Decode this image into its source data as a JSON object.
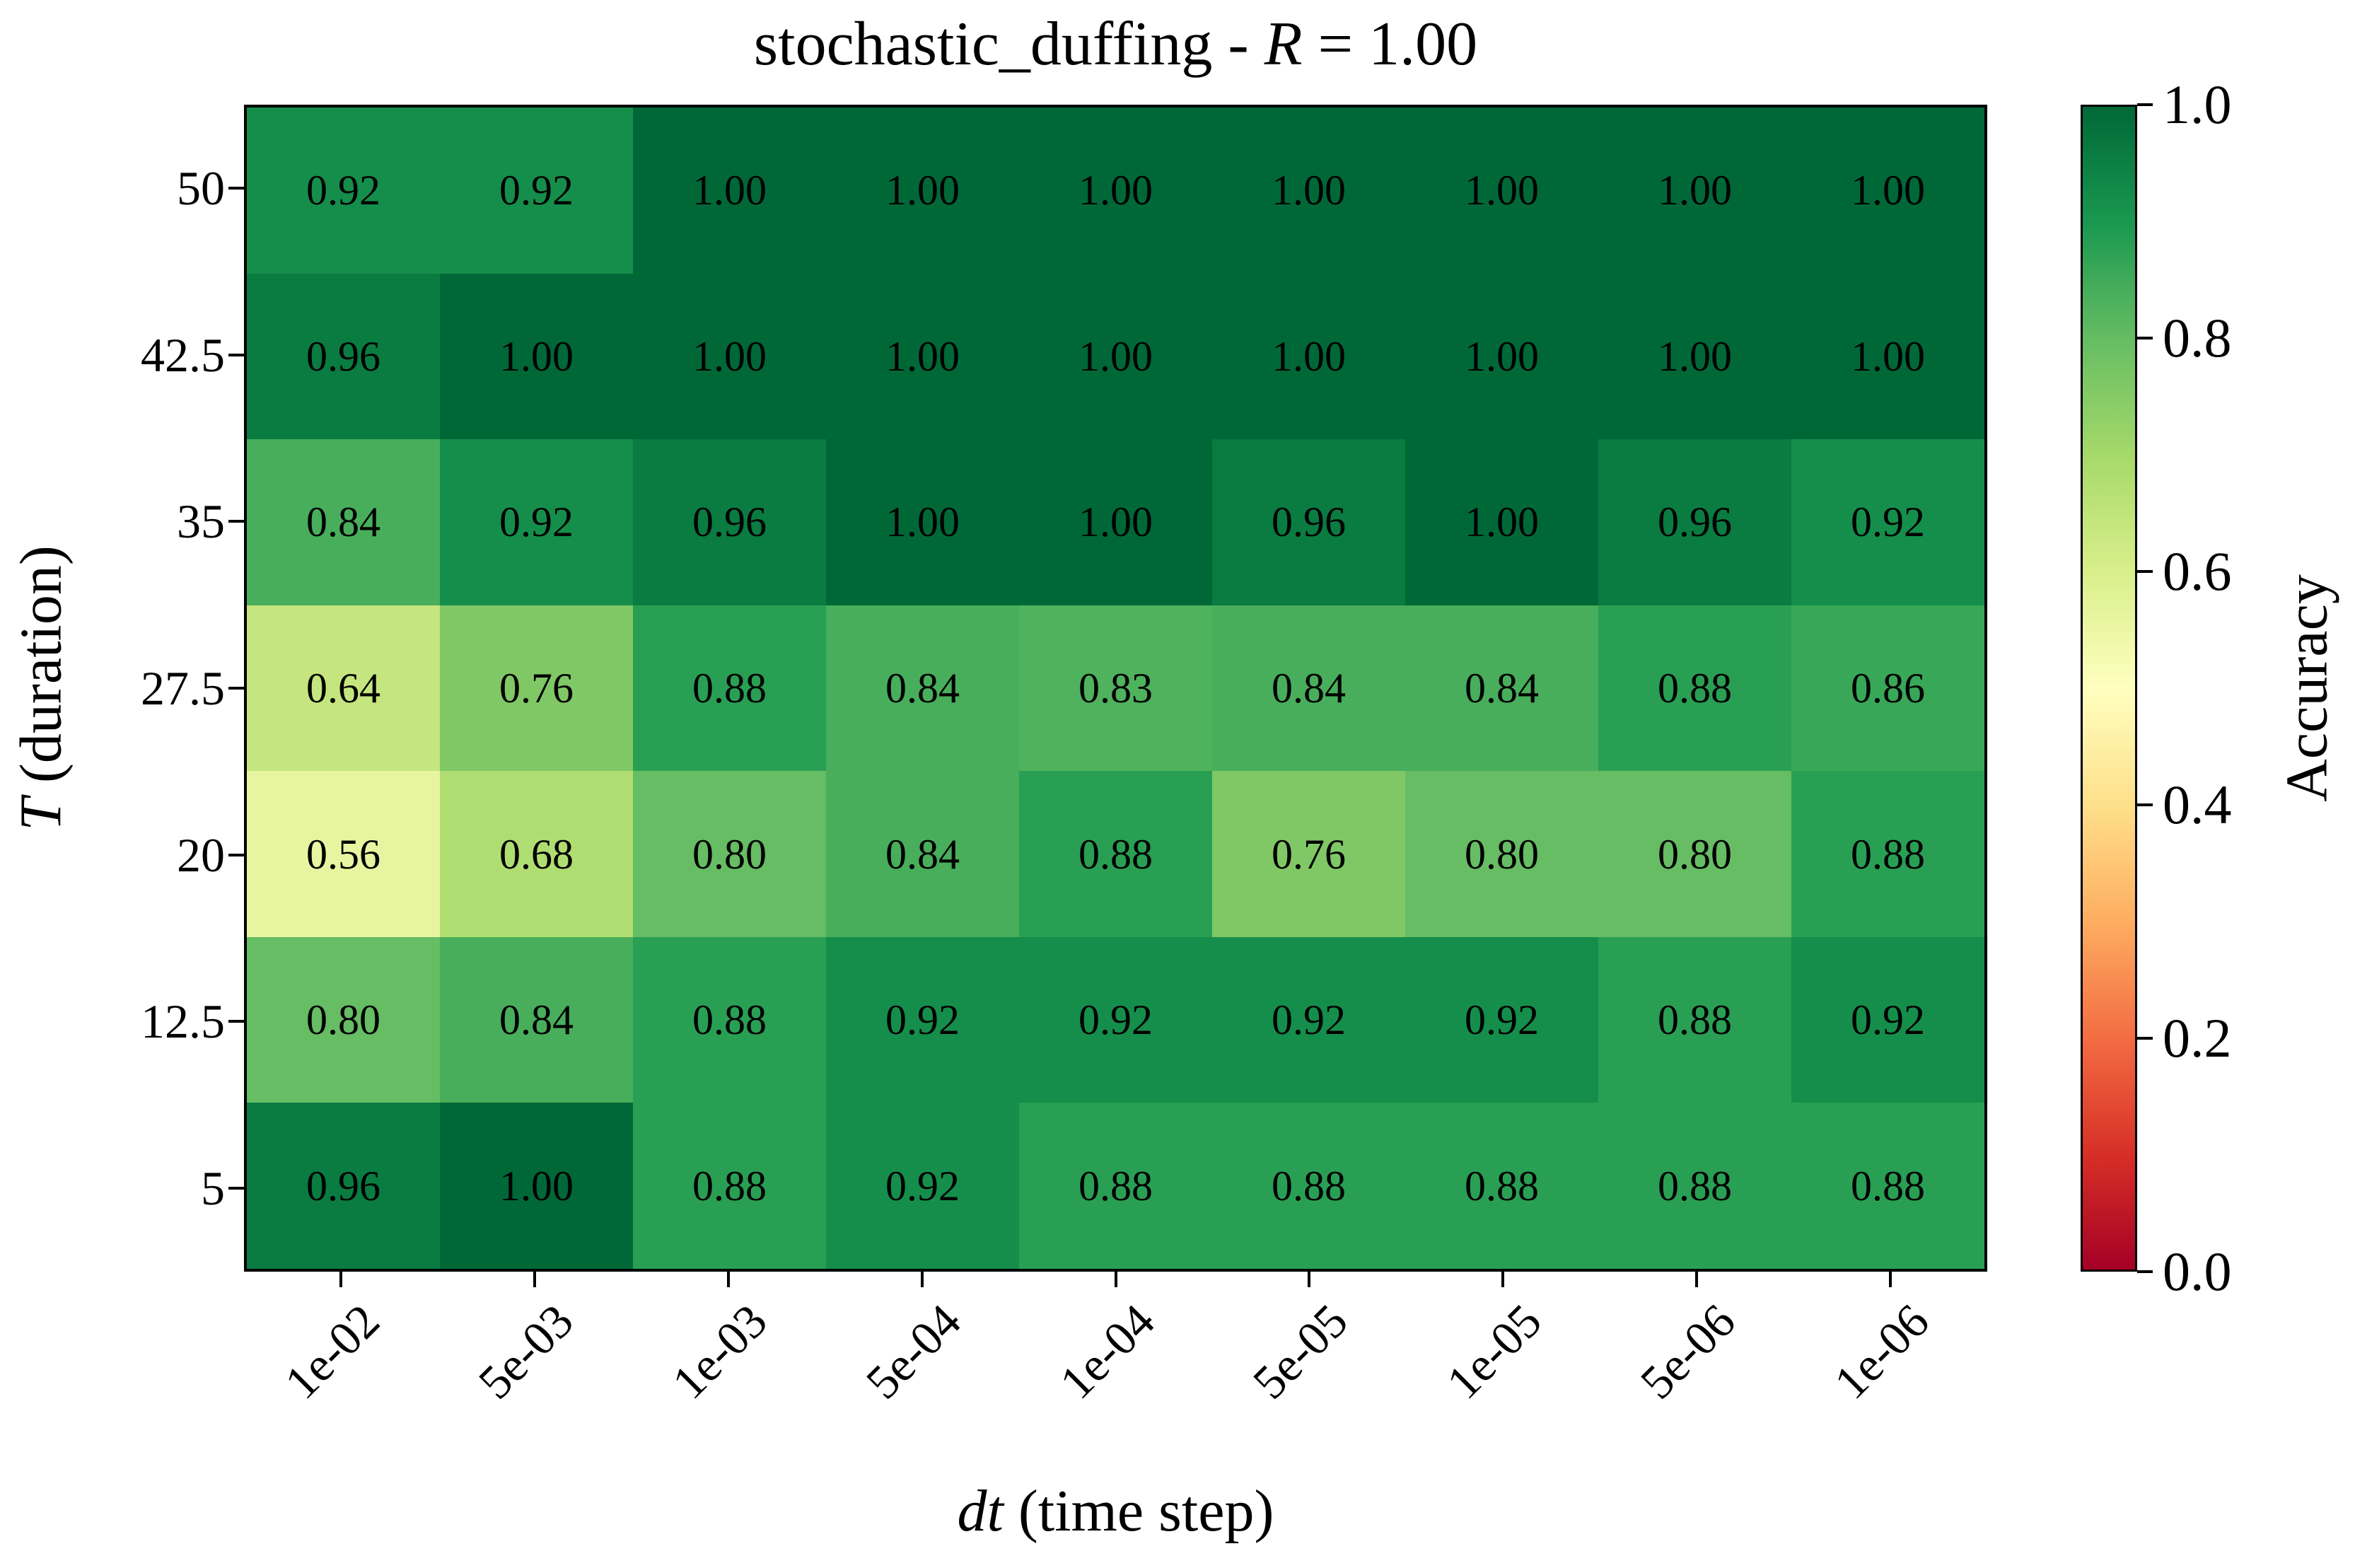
{
  "chart_data": {
    "type": "heatmap",
    "title": {
      "prefix": "stochastic_duffing - ",
      "var": "R",
      "suffix": " = 1.00"
    },
    "xlabel": {
      "var": "dt",
      "suffix": " (time step)"
    },
    "ylabel": {
      "var": "T",
      "suffix": " (duration)"
    },
    "x_categories": [
      "1e-02",
      "5e-03",
      "1e-03",
      "5e-04",
      "1e-04",
      "5e-05",
      "1e-05",
      "5e-06",
      "1e-06"
    ],
    "y_categories": [
      "50",
      "42.5",
      "35",
      "27.5",
      "20",
      "12.5",
      "5"
    ],
    "values": [
      [
        0.92,
        0.92,
        1.0,
        1.0,
        1.0,
        1.0,
        1.0,
        1.0,
        1.0
      ],
      [
        0.96,
        1.0,
        1.0,
        1.0,
        1.0,
        1.0,
        1.0,
        1.0,
        1.0
      ],
      [
        0.84,
        0.92,
        0.96,
        1.0,
        1.0,
        0.96,
        1.0,
        0.96,
        0.92
      ],
      [
        0.64,
        0.76,
        0.88,
        0.84,
        0.83,
        0.84,
        0.84,
        0.88,
        0.86
      ],
      [
        0.56,
        0.68,
        0.8,
        0.84,
        0.88,
        0.76,
        0.8,
        0.8,
        0.88
      ],
      [
        0.8,
        0.84,
        0.88,
        0.92,
        0.92,
        0.92,
        0.92,
        0.88,
        0.92
      ],
      [
        0.96,
        1.0,
        0.88,
        0.92,
        0.88,
        0.88,
        0.88,
        0.88,
        0.88
      ]
    ],
    "colorbar": {
      "label": "Accuracy",
      "ticks": [
        "1.0",
        "0.8",
        "0.6",
        "0.4",
        "0.2",
        "0.0"
      ],
      "vmin": 0.0,
      "vmax": 1.0
    },
    "colormap": {
      "name": "RdYlGn",
      "stops": [
        "#a50026",
        "#d73027",
        "#f46d43",
        "#fdae61",
        "#fee08b",
        "#ffffbf",
        "#d9ef8b",
        "#a6d96a",
        "#66bd63",
        "#1a9850",
        "#006837"
      ]
    },
    "grid": false,
    "text_color": "#000000",
    "background_color": "#ffffff"
  }
}
